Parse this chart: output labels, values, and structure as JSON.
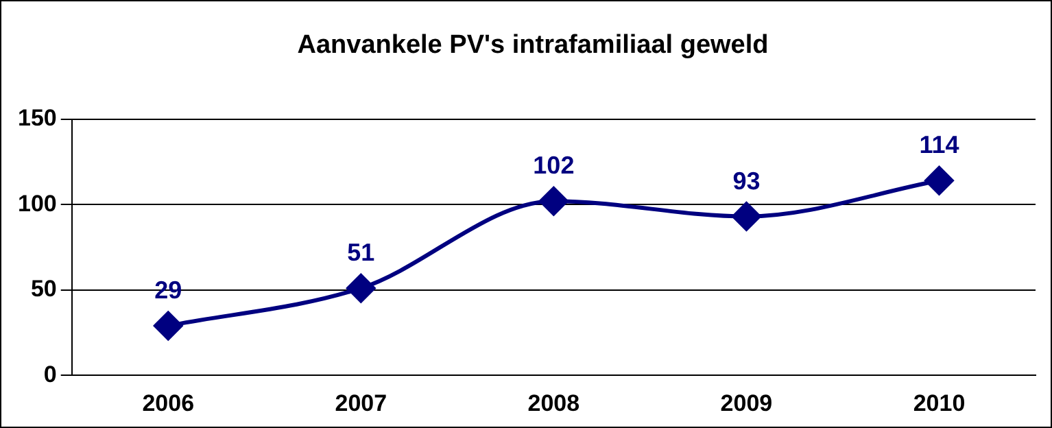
{
  "chart_data": {
    "type": "line",
    "title": "Aanvankele PV's intrafamiliaal geweld",
    "categories": [
      "2006",
      "2007",
      "2008",
      "2009",
      "2010"
    ],
    "series": [
      {
        "color": "#000080",
        "values": [
          29,
          51,
          102,
          93,
          114
        ]
      }
    ],
    "ylim": [
      0,
      150
    ],
    "yticks": [
      0,
      50,
      100,
      150
    ],
    "grid": "y",
    "legend": false,
    "marker": "diamond",
    "line_style": "solid",
    "data_labels": true
  }
}
